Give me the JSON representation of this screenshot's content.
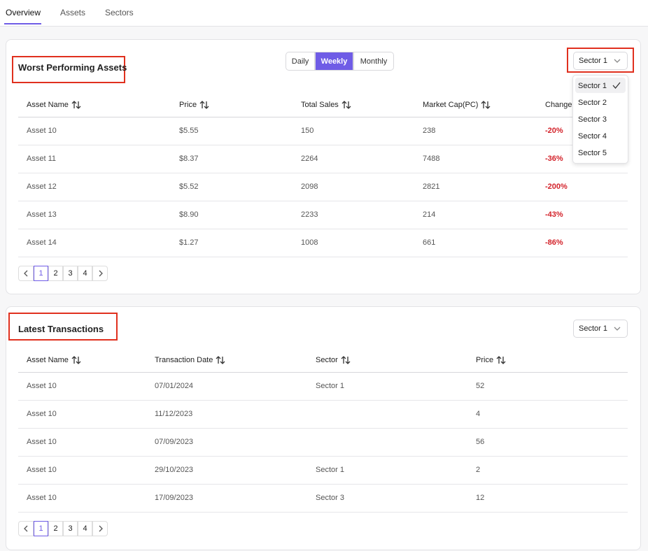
{
  "tabs": [
    "Overview",
    "Assets",
    "Sectors"
  ],
  "worst": {
    "title": "Worst Performing Assets",
    "periods": [
      "Daily",
      "Weekly",
      "Monthly"
    ],
    "sector": "Sector 1",
    "sector_options": [
      "Sector 1",
      "Sector 2",
      "Sector 3",
      "Sector 4",
      "Sector 5"
    ],
    "columns": [
      "Asset Name",
      "Price",
      "Total Sales",
      "Market Cap(PC)",
      "Change"
    ],
    "rows": [
      [
        "Asset 10",
        "$5.55",
        "150",
        "238",
        "-20%"
      ],
      [
        "Asset 11",
        "$8.37",
        "2264",
        "7488",
        "-36%"
      ],
      [
        "Asset 12",
        "$5.52",
        "2098",
        "2821",
        "-200%"
      ],
      [
        "Asset 13",
        "$8.90",
        "2233",
        "214",
        "-43%"
      ],
      [
        "Asset 14",
        "$1.27",
        "1008",
        "661",
        "-86%"
      ]
    ],
    "pages": [
      1,
      2,
      3,
      4
    ]
  },
  "latest": {
    "title": "Latest Transactions",
    "sector": "Sector 1",
    "columns": [
      "Asset Name",
      "Transaction Date",
      "Sector",
      "Price"
    ],
    "rows": [
      [
        "Asset 10",
        "07/01/2024",
        "Sector 1",
        "52"
      ],
      [
        "Asset 10",
        "11/12/2023",
        null,
        "4"
      ],
      [
        "Asset 10",
        "07/09/2023",
        null,
        "56"
      ],
      [
        "Asset 10",
        "29/10/2023",
        "Sector 1",
        "2"
      ],
      [
        "Asset 10",
        "17/09/2023",
        "Sector 3",
        "12"
      ]
    ],
    "pages": [
      1,
      2,
      3,
      4
    ]
  }
}
